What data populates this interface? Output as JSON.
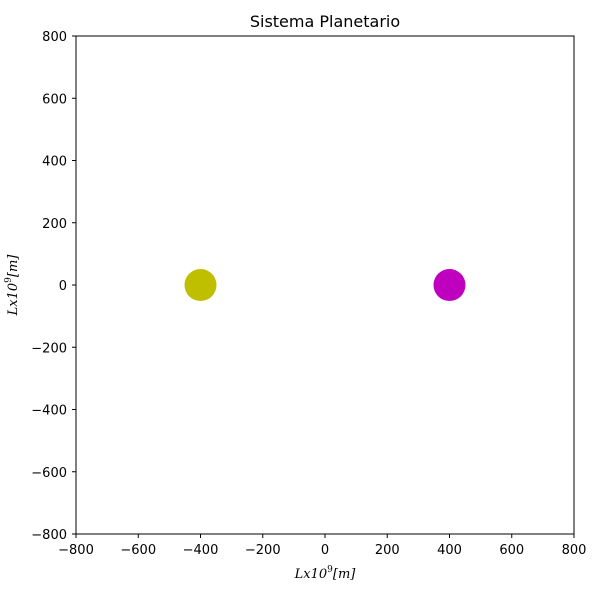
{
  "chart_data": {
    "type": "scatter",
    "title": "Sistema Planetario",
    "xlabel": "Lx10^9[m]",
    "ylabel": "Lx10^9[m]",
    "xlabel_parts": {
      "base": "Lx10",
      "exp": "9",
      "unit": "[m]"
    },
    "ylabel_parts": {
      "base": "Lx10",
      "exp": "9",
      "unit": "[m]"
    },
    "xlim": [
      -800,
      800
    ],
    "ylim": [
      -800,
      800
    ],
    "xticks": [
      -800,
      -600,
      -400,
      -200,
      0,
      200,
      400,
      600,
      800
    ],
    "yticks": [
      -800,
      -600,
      -400,
      -200,
      0,
      200,
      400,
      600,
      800
    ],
    "xtick_labels": [
      "−800",
      "−600",
      "−400",
      "−200",
      "0",
      "200",
      "400",
      "600",
      "800"
    ],
    "ytick_labels": [
      "−800",
      "−600",
      "−400",
      "−200",
      "0",
      "200",
      "400",
      "600",
      "800"
    ],
    "grid": false,
    "legend": "none",
    "series": [
      {
        "color": "#bfbf00",
        "points": [
          {
            "x": -400,
            "y": 0
          }
        ]
      },
      {
        "color": "#bf00bf",
        "points": [
          {
            "x": 400,
            "y": 0
          }
        ]
      }
    ]
  }
}
